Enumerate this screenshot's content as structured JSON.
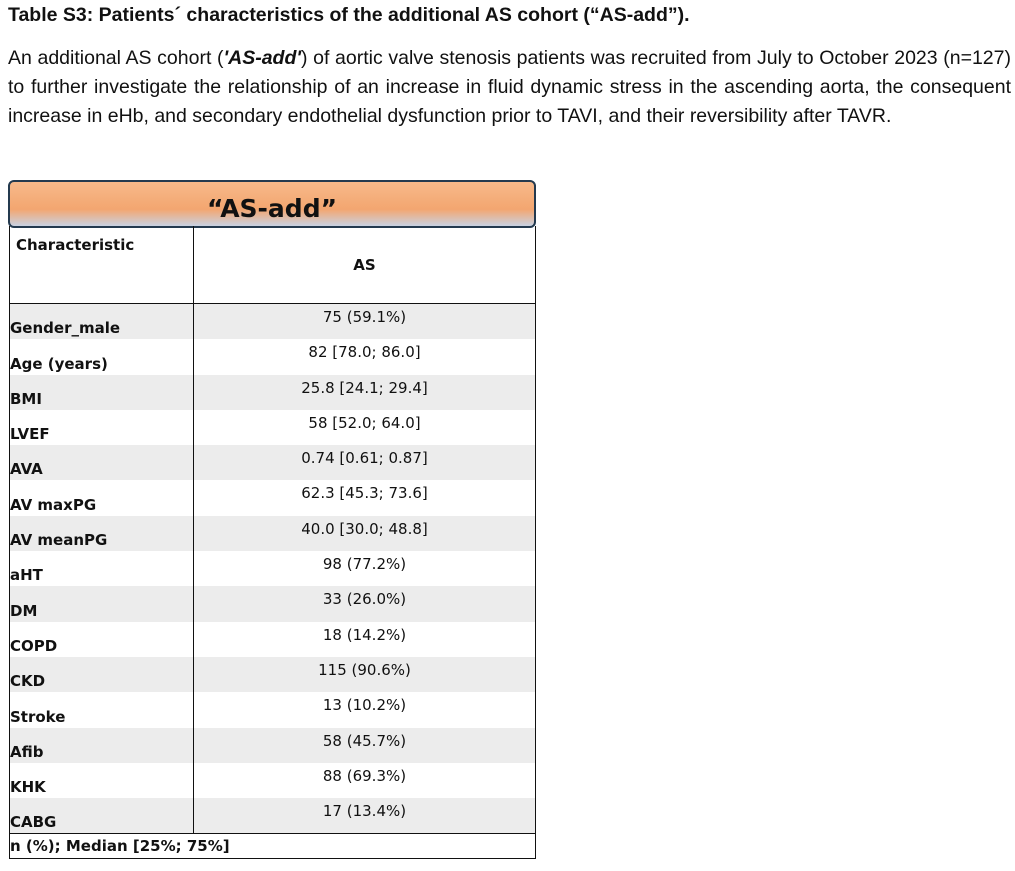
{
  "title": "Table S3: Patients´ characteristics of the additional AS cohort (“AS-add”).",
  "paragraph": {
    "before": "An additional AS cohort (",
    "cohort_name": "'AS-add'",
    "after": ") of aortic valve stenosis patients was recruited from July to October 2023 (n=127) to further investigate the relationship of an increase in fluid dynamic stress in the ascending aorta, the consequent increase in eHb, and secondary endothelial dysfunction prior to TAVI, and their reversibility after TAVR."
  },
  "table": {
    "banner": "“AS-add”",
    "header_characteristic": "Characteristic",
    "header_group": "AS",
    "rows": [
      {
        "label": "Gender_male",
        "value": "75 (59.1%)"
      },
      {
        "label": "Age (years)",
        "value": "82 [78.0; 86.0]"
      },
      {
        "label": "BMI",
        "value": "25.8 [24.1; 29.4]"
      },
      {
        "label": "LVEF",
        "value": "58 [52.0; 64.0]"
      },
      {
        "label": "AVA",
        "value": "0.74 [0.61; 0.87]"
      },
      {
        "label": "AV maxPG",
        "value": "62.3 [45.3; 73.6]"
      },
      {
        "label": "AV meanPG",
        "value": "40.0 [30.0; 48.8]"
      },
      {
        "label": "aHT",
        "value": "98 (77.2%)"
      },
      {
        "label": "DM",
        "value": "33 (26.0%)"
      },
      {
        "label": "COPD",
        "value": "18 (14.2%)"
      },
      {
        "label": "CKD",
        "value": "115 (90.6%)"
      },
      {
        "label": "Stroke",
        "value": "13 (10.2%)"
      },
      {
        "label": "Afib",
        "value": "58 (45.7%)"
      },
      {
        "label": "KHK",
        "value": "88 (69.3%)"
      },
      {
        "label": "CABG",
        "value": "17 (13.4%)"
      }
    ],
    "footnote": "n (%); Median [25%; 75%]"
  }
}
